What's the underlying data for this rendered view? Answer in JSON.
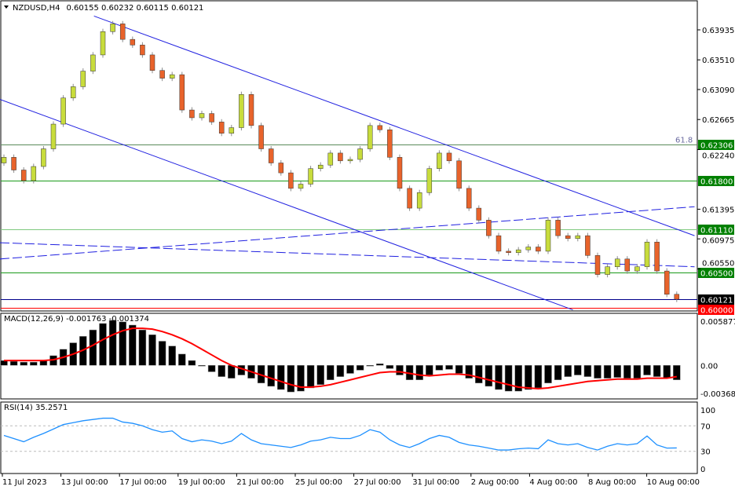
{
  "chart_data": {
    "type": "candlestick",
    "symbol_header": "NZDUSD,H4",
    "ohlc_header": "0.60155 0.60232 0.60115 0.60121",
    "first_open": 0.6205,
    "close": [
      0.6213,
      0.6195,
      0.618,
      0.62,
      0.6225,
      0.626,
      0.6297,
      0.6313,
      0.6335,
      0.6358,
      0.6391,
      0.6402,
      0.638,
      0.6372,
      0.6358,
      0.6336,
      0.6325,
      0.633,
      0.628,
      0.6269,
      0.6275,
      0.6263,
      0.6247,
      0.6255,
      0.6302,
      0.6258,
      0.6225,
      0.6205,
      0.6191,
      0.6169,
      0.6175,
      0.6197,
      0.6202,
      0.6219,
      0.6208,
      0.621,
      0.6225,
      0.6258,
      0.6252,
      0.6213,
      0.6169,
      0.6141,
      0.6163,
      0.6197,
      0.6219,
      0.6208,
      0.6169,
      0.6141,
      0.6124,
      0.6102,
      0.608,
      0.6078,
      0.6082,
      0.6086,
      0.608,
      0.6124,
      0.6102,
      0.6098,
      0.6102,
      0.6074,
      0.6047,
      0.6058,
      0.6069,
      0.6052,
      0.6058,
      0.6093,
      0.6052,
      0.6019,
      0.6012
    ],
    "price_ticks": [
      "0.63935",
      "0.63510",
      "0.63090",
      "0.62665",
      "0.62240",
      "0.61395",
      "0.60975",
      "0.60550"
    ],
    "price_range": [
      0.5995,
      0.6428
    ],
    "levels": [
      {
        "price": 0.62306,
        "label": "0.62306",
        "color": "#008000",
        "line": "#5a8a5a",
        "tag": "61.8"
      },
      {
        "price": 0.618,
        "label": "0.61800",
        "color": "#008000",
        "line": "#1a9a1a"
      },
      {
        "price": 0.6111,
        "label": "0.61110",
        "color": "#008000",
        "line": "#7fc97f"
      },
      {
        "price": 0.605,
        "label": "0.60500",
        "color": "#008000",
        "line": "#1a9a1a"
      },
      {
        "price": 0.60121,
        "label": "0.60121",
        "color": "#000000",
        "line": "#00008b"
      },
      {
        "price": 0.6,
        "label": "0.60000",
        "color": "#ff0000",
        "line": "#ff0000"
      }
    ],
    "trendlines": [
      {
        "from": [
          9.1,
          0.6413
        ],
        "to": [
          69.8,
          0.6102
        ],
        "style": "solid"
      },
      {
        "from": [
          -0.4,
          0.6295
        ],
        "to": [
          57.5,
          0.5997
        ],
        "style": "solid"
      },
      {
        "from": [
          -0.4,
          0.6069
        ],
        "to": [
          69.8,
          0.6143
        ],
        "style": "dashed"
      },
      {
        "from": [
          -0.4,
          0.6092
        ],
        "to": [
          69.8,
          0.6058
        ],
        "style": "dashed"
      }
    ],
    "colors": {
      "bull": "#c8dc3c",
      "bear": "#e8632b",
      "wick": "#8c8c8c",
      "trend": "#2020e0",
      "macd_signal": "#ff0000",
      "rsi": "#1e90ff"
    },
    "macd": {
      "header": "MACD(12,26,9) -0.001763 -0.001374",
      "ticks": [
        "0.005877",
        "0.00",
        "-0.00368"
      ],
      "range": [
        -0.00368,
        0.005877
      ],
      "main": [
        0.0006,
        0.0005,
        0.0004,
        0.0004,
        0.0006,
        0.0012,
        0.002,
        0.0028,
        0.0036,
        0.0044,
        0.0052,
        0.0056,
        0.0054,
        0.005,
        0.0044,
        0.0038,
        0.003,
        0.0024,
        0.0014,
        0.0006,
        0.0,
        -0.0008,
        -0.0014,
        -0.0016,
        -0.0012,
        -0.0016,
        -0.0022,
        -0.0026,
        -0.003,
        -0.0033,
        -0.0032,
        -0.0028,
        -0.0024,
        -0.0018,
        -0.0014,
        -0.001,
        -0.0006,
        0.0,
        0.0002,
        -0.0004,
        -0.0012,
        -0.0018,
        -0.0018,
        -0.0012,
        -0.0006,
        -0.0005,
        -0.001,
        -0.0016,
        -0.0022,
        -0.0026,
        -0.003,
        -0.0032,
        -0.0032,
        -0.003,
        -0.0028,
        -0.0022,
        -0.0018,
        -0.0014,
        -0.0012,
        -0.0014,
        -0.0016,
        -0.0016,
        -0.0015,
        -0.0016,
        -0.0016,
        -0.0012,
        -0.0014,
        -0.0016,
        -0.0018
      ],
      "signal": [
        0.0006,
        0.0006,
        0.0006,
        0.0006,
        0.0006,
        0.0007,
        0.001,
        0.0014,
        0.0019,
        0.0025,
        0.0032,
        0.0038,
        0.0043,
        0.0046,
        0.0046,
        0.0045,
        0.0042,
        0.0038,
        0.0033,
        0.0027,
        0.002,
        0.0013,
        0.0006,
        0.0,
        -0.0004,
        -0.0008,
        -0.0012,
        -0.0016,
        -0.002,
        -0.0024,
        -0.0027,
        -0.0027,
        -0.0026,
        -0.0024,
        -0.0021,
        -0.0018,
        -0.0015,
        -0.0012,
        -0.0009,
        -0.0008,
        -0.0008,
        -0.001,
        -0.0012,
        -0.0013,
        -0.0012,
        -0.0011,
        -0.0011,
        -0.0012,
        -0.0015,
        -0.0018,
        -0.0021,
        -0.0024,
        -0.0027,
        -0.0028,
        -0.0029,
        -0.0028,
        -0.0026,
        -0.0024,
        -0.0022,
        -0.002,
        -0.0019,
        -0.0018,
        -0.0017,
        -0.0017,
        -0.0017,
        -0.0016,
        -0.0016,
        -0.0016,
        -0.0014
      ]
    },
    "rsi": {
      "header": "RSI(14) 35.2571",
      "ticks": [
        "100",
        "70",
        "30",
        "0"
      ],
      "levels": [
        70,
        30
      ],
      "range": [
        0,
        100
      ],
      "values": [
        55,
        50,
        45,
        52,
        58,
        65,
        72,
        75,
        78,
        80,
        82,
        82,
        76,
        74,
        70,
        64,
        60,
        62,
        50,
        45,
        48,
        46,
        42,
        46,
        58,
        48,
        42,
        40,
        38,
        36,
        40,
        46,
        48,
        52,
        50,
        50,
        55,
        64,
        60,
        48,
        40,
        36,
        42,
        50,
        55,
        52,
        44,
        40,
        38,
        35,
        32,
        32,
        34,
        35,
        34,
        48,
        42,
        40,
        42,
        36,
        32,
        38,
        42,
        40,
        42,
        54,
        40,
        35,
        35.26
      ]
    },
    "time_labels": [
      "11 Jul 2023",
      "13 Jul 00:00",
      "17 Jul 00:00",
      "19 Jul 00:00",
      "21 Jul 00:00",
      "25 Jul 00:00",
      "27 Jul 00:00",
      "31 Jul 00:00",
      "2 Aug 00:00",
      "4 Aug 00:00",
      "8 Aug 00:00",
      "10 Aug 00:00"
    ]
  }
}
